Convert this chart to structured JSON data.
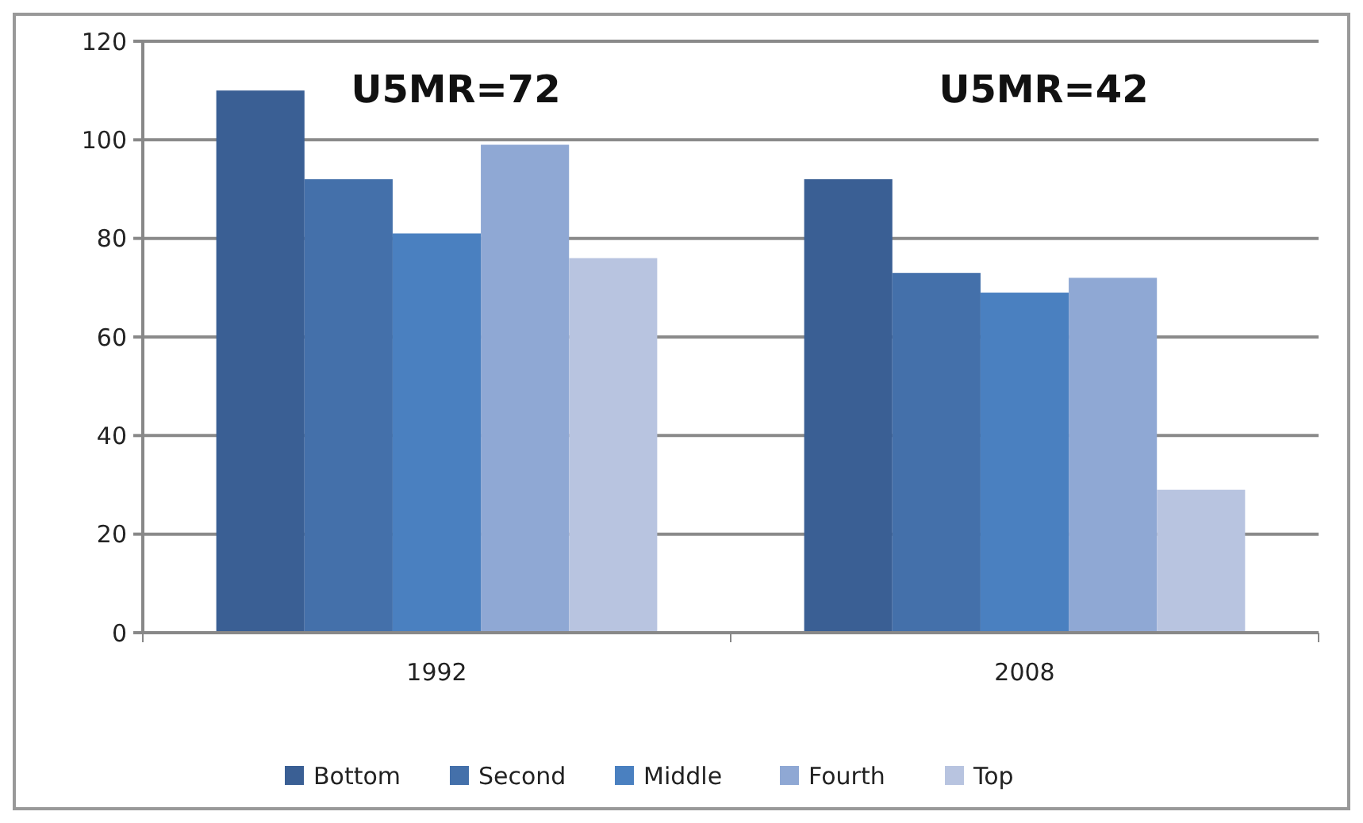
{
  "chart_data": {
    "type": "bar",
    "categories": [
      "1992",
      "2008"
    ],
    "series": [
      {
        "name": "Bottom",
        "color": "#3a5f94",
        "values": [
          110,
          92
        ]
      },
      {
        "name": "Second",
        "color": "#4470aa",
        "values": [
          92,
          73
        ]
      },
      {
        "name": "Middle",
        "color": "#4a80c0",
        "values": [
          81,
          69
        ]
      },
      {
        "name": "Fourth",
        "color": "#8fa8d4",
        "values": [
          99,
          72
        ]
      },
      {
        "name": "Top",
        "color": "#b8c4e0",
        "values": [
          76,
          29
        ]
      }
    ],
    "ylim": [
      0,
      120
    ],
    "yticks": [
      0,
      20,
      40,
      60,
      80,
      100,
      120
    ],
    "grid": "y",
    "legend": "bottom",
    "annotations": [
      "U5MR=72",
      "U5MR=42"
    ]
  }
}
